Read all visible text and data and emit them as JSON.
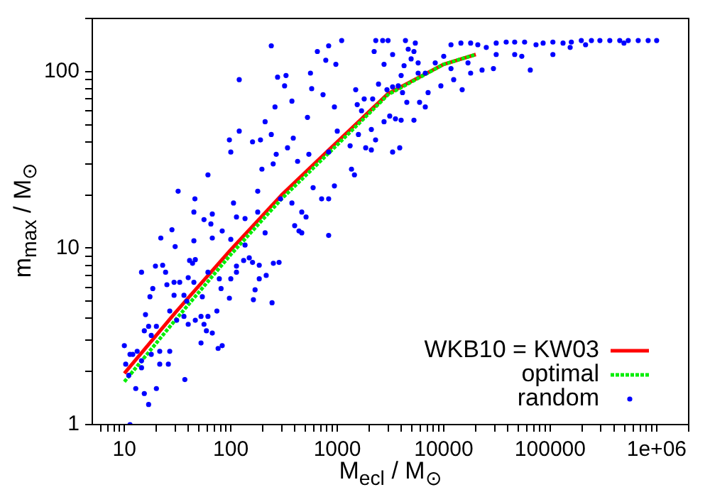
{
  "chart_data": {
    "type": "scatter",
    "xlabel": "M$_{ecl}$ / M$_{⊙}$",
    "ylabel": "m$_{max}$ / M$_{⊙}$",
    "log": "xy",
    "legend": "bottom right",
    "xlim": [
      5,
      2000000
    ],
    "ylim": [
      1,
      200
    ],
    "xticks": [
      {
        "value": 6,
        "label": null
      },
      {
        "value": 7,
        "label": null
      },
      {
        "value": 8,
        "label": null
      },
      {
        "value": 9,
        "label": null
      },
      10,
      {
        "value": 20,
        "label": null
      },
      {
        "value": 30,
        "label": null
      },
      {
        "value": 40,
        "label": null
      },
      {
        "value": 50,
        "label": null
      },
      {
        "value": 60,
        "label": null
      },
      {
        "value": 70,
        "label": null
      },
      {
        "value": 80,
        "label": null
      },
      {
        "value": 90,
        "label": null
      },
      100,
      {
        "value": 200,
        "label": null
      },
      {
        "value": 300,
        "label": null
      },
      {
        "value": 400,
        "label": null
      },
      {
        "value": 500,
        "label": null
      },
      {
        "value": 600,
        "label": null
      },
      {
        "value": 700,
        "label": null
      },
      {
        "value": 800,
        "label": null
      },
      {
        "value": 900,
        "label": null
      },
      1000,
      {
        "value": 2000,
        "label": null
      },
      {
        "value": 3000,
        "label": null
      },
      {
        "value": 4000,
        "label": null
      },
      {
        "value": 5000,
        "label": null
      },
      {
        "value": 6000,
        "label": null
      },
      {
        "value": 7000,
        "label": null
      },
      {
        "value": 8000,
        "label": null
      },
      {
        "value": 9000,
        "label": null
      },
      10000,
      {
        "value": 20000,
        "label": null
      },
      {
        "value": 30000,
        "label": null
      },
      {
        "value": 40000,
        "label": null
      },
      {
        "value": 50000,
        "label": null
      },
      {
        "value": 60000,
        "label": null
      },
      {
        "value": 70000,
        "label": null
      },
      {
        "value": 80000,
        "label": null
      },
      {
        "value": 90000,
        "label": null
      },
      100000,
      {
        "value": 200000,
        "label": null
      },
      {
        "value": 300000,
        "label": null
      },
      {
        "value": 400000,
        "label": null
      },
      {
        "value": 500000,
        "label": null
      },
      {
        "value": 600000,
        "label": null
      },
      {
        "value": 700000,
        "label": null
      },
      {
        "value": 800000,
        "label": null
      },
      {
        "value": 900000,
        "label": null
      },
      {
        "value": 1000000,
        "label": "1e+06"
      },
      {
        "value": 2000000,
        "label": null
      }
    ],
    "yticks": [
      1,
      {
        "value": 2,
        "label": null
      },
      {
        "value": 3,
        "label": null
      },
      {
        "value": 4,
        "label": null
      },
      {
        "value": 5,
        "label": null
      },
      {
        "value": 6,
        "label": null
      },
      {
        "value": 7,
        "label": null
      },
      {
        "value": 8,
        "label": null
      },
      {
        "value": 9,
        "label": null
      },
      10,
      {
        "value": 20,
        "label": null
      },
      {
        "value": 30,
        "label": null
      },
      {
        "value": 40,
        "label": null
      },
      {
        "value": 50,
        "label": null
      },
      {
        "value": 60,
        "label": null
      },
      {
        "value": 70,
        "label": null
      },
      {
        "value": 80,
        "label": null
      },
      {
        "value": 90,
        "label": null
      },
      100,
      {
        "value": 200,
        "label": null
      }
    ],
    "series": [
      {
        "name": "WKB10 = KW03",
        "type": "line",
        "line_style": "solid",
        "marker": "none",
        "color": "#ff0000",
        "x": [
          10,
          30,
          100,
          300,
          1000,
          3000,
          10000,
          20000
        ],
        "values": [
          1.95,
          4.3,
          9.8,
          20,
          40,
          75,
          110,
          125
        ]
      },
      {
        "name": "optimal",
        "type": "line",
        "line_style": "dotted",
        "marker": "none",
        "color": "#00ee00",
        "x": [
          10,
          30,
          100,
          300,
          1000,
          3000,
          10000,
          20000
        ],
        "values": [
          1.75,
          3.9,
          9.2,
          19,
          38.5,
          74,
          110,
          125
        ]
      },
      {
        "name": "random",
        "type": "scatter",
        "marker": "circle",
        "color": "#0000ff",
        "x": [
          240,
          120,
          1100,
          830,
          650,
          780,
          970,
          275,
          330,
          320,
          560,
          575,
          735,
          375,
          940,
          260,
          525,
          210,
          120,
          97,
          100,
          160,
          190,
          240,
          267,
          386,
          341,
          424,
          541,
          830,
          1000,
          1320,
          32,
          61,
          46,
          45,
          56,
          65,
          67,
          106,
          113,
          136,
          179,
          179,
          196,
          250,
          293,
          375,
          464,
          509,
          398,
          437,
          593,
          713,
          830,
          940,
          28,
          22,
          30,
          45,
          67,
          83,
          100,
          136,
          210,
          464,
          830,
          1360,
          2300,
          2670,
          3000,
          2220,
          3310,
          4370,
          4640,
          5250,
          5410,
          2750,
          4240,
          5750,
          4940,
          3980,
          5750,
          6710,
          8320,
          10000,
          11700,
          14500,
          17900,
          20900,
          25100,
          31100,
          38600,
          46400,
          57500,
          73600,
          85800,
          106000,
          132000,
          158000,
          196000,
          244000,
          293000,
          363000,
          450000,
          541000,
          671000,
          832000,
          1000000,
          493000,
          215000,
          154000,
          106000,
          65000,
          46400,
          54100,
          31100,
          29300,
          22900,
          16900,
          17900,
          14900,
          12400,
          11700,
          9400,
          7130,
          6710,
          5930,
          5250,
          4500,
          4100,
          3740,
          3310,
          2930,
          2440,
          2150,
          1790,
          1490,
          1690,
          1540,
          2750,
          3110,
          3520,
          3980,
          2090,
          2290,
          2090,
          1850,
          3310,
          3860,
          1580,
          1450,
          10,
          10.3,
          11.3,
          12,
          13.2,
          11,
          12.8,
          15.4,
          16.9,
          20,
          37,
          11.3,
          14.5,
          17.4,
          15.8,
          16.9,
          15.4,
          17.9,
          20,
          21.5,
          21.5,
          26.7,
          25.9,
          17.9,
          14.5,
          14.5,
          18.5,
          19.6,
          22.9,
          24.4,
          29.3,
          26.7,
          25.1,
          33.1,
          36.3,
          38.6,
          29.3,
          39.8,
          43.7,
          46.4,
          41,
          54,
          45,
          36.3,
          31,
          39.8,
          46.4,
          52.5,
          56,
          59,
          52.5,
          67,
          76,
          83,
          61,
          74,
          61,
          78,
          81,
          97,
          100,
          113,
          113,
          160,
          132,
          149,
          185,
          185,
          169,
          163,
          215,
          244,
          284,
          251
        ],
        "values": [
          140,
          90,
          150,
          140,
          130,
          116,
          110,
          93,
          95,
          83,
          98,
          80,
          74,
          68,
          63,
          63,
          55,
          52,
          46,
          41,
          35,
          40,
          41,
          44,
          34,
          42,
          37,
          31,
          34,
          35,
          46,
          38,
          21,
          26,
          19,
          16,
          14.5,
          13.7,
          15.6,
          18,
          15,
          14.7,
          16,
          21,
          28,
          30,
          19,
          18,
          16,
          15,
          13.4,
          12.5,
          22,
          19,
          19,
          22.5,
          12.7,
          11.4,
          10.2,
          11,
          11.4,
          12.5,
          11.2,
          10.4,
          12.2,
          12.2,
          11.8,
          28,
          150,
          150,
          150,
          130,
          125,
          150,
          134,
          130,
          145,
          110,
          108,
          112,
          118,
          95,
          98,
          98,
          112,
          122,
          142,
          145,
          145,
          142,
          137,
          145,
          147,
          147,
          147,
          142,
          145,
          147,
          145,
          147,
          150,
          150,
          150,
          150,
          150,
          150,
          150,
          150,
          150,
          145,
          142,
          137,
          125,
          102,
          125,
          122,
          125,
          104,
          102,
          112,
          98,
          79,
          90,
          104,
          83,
          76,
          63,
          67,
          53,
          67,
          76,
          83,
          82,
          79,
          85,
          70,
          70,
          79,
          60,
          65,
          52,
          56,
          54,
          53,
          47,
          41,
          36,
          37,
          35,
          37,
          44,
          26,
          2.8,
          2.2,
          2.5,
          2.5,
          2.6,
          1.9,
          1.6,
          1.5,
          1.3,
          1.6,
          1.8,
          1.0,
          7.3,
          5.3,
          4.2,
          3.6,
          3.4,
          3.2,
          3.6,
          2.6,
          2.2,
          2.6,
          2.2,
          2.5,
          2.1,
          2.3,
          5.9,
          7.9,
          8.0,
          7.3,
          6.4,
          4.4,
          6.2,
          6.4,
          5.4,
          5.0,
          5.4,
          6.8,
          8.2,
          8.6,
          8.5,
          5.3,
          6.4,
          4.1,
          3.9,
          3.7,
          3.9,
          4.1,
          3.7,
          3.4,
          2.9,
          3.3,
          2.7,
          2.8,
          4.1,
          4.4,
          7.3,
          6.7,
          5.9,
          5.2,
          6.7,
          7.3,
          7.9,
          8.3,
          8.5,
          8.8,
          8.0,
          6.7,
          5.8,
          5.1,
          7.0,
          4.9,
          8.3,
          8.2
        ]
      }
    ]
  }
}
